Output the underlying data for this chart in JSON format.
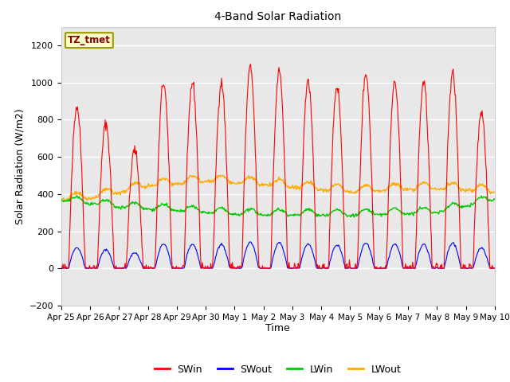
{
  "title": "4-Band Solar Radiation",
  "xlabel": "Time",
  "ylabel": "Solar Radiation (W/m2)",
  "ylim": [
    -200,
    1300
  ],
  "yticks": [
    -200,
    0,
    200,
    400,
    600,
    800,
    1000,
    1200
  ],
  "x_tick_labels": [
    "Apr 25",
    "Apr 26",
    "Apr 27",
    "Apr 28",
    "Apr 29",
    "Apr 30",
    "May 1",
    "May 2",
    "May 3",
    "May 4",
    "May 5",
    "May 6",
    "May 7",
    "May 8",
    "May 9",
    "May 10"
  ],
  "label_box_text": "TZ_tmet",
  "label_box_facecolor": "#ffffcc",
  "label_box_edgecolor": "#999900",
  "label_box_textcolor": "#880000",
  "legend_entries": [
    "SWin",
    "SWout",
    "LWin",
    "LWout"
  ],
  "legend_colors": [
    "#ff0000",
    "#0000ff",
    "#00cc00",
    "#ffaa00"
  ],
  "figure_facecolor": "#ffffff",
  "plot_bg_color": "#e8e8e8",
  "grid_color": "#ffffff",
  "num_days": 15,
  "dt_hours": 0.5
}
